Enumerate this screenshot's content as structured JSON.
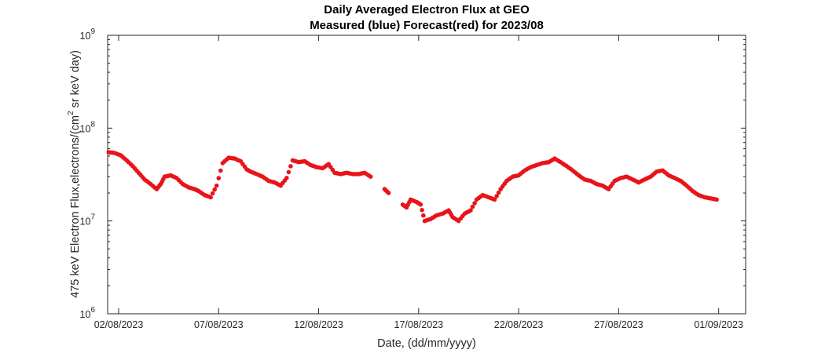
{
  "chart_data": {
    "type": "scatter",
    "title": "Daily Averaged Electron Flux at GEO",
    "subtitle": "Measured (blue) Forecast(red) for 2023/08",
    "xlabel": "Date, (dd/mm/yyyy)",
    "ylabel_main": "475 keV Electron Flux,electrons/(cm",
    "ylabel_sup": "2",
    "ylabel_tail": " sr keV day)",
    "y_scale": "log",
    "ylim": [
      1000000,
      1000000000
    ],
    "xlim_days_in_august": [
      1.45,
      33.35
    ],
    "x_ticks": [
      {
        "label": "02/08/2023",
        "value": 2
      },
      {
        "label": "07/08/2023",
        "value": 7
      },
      {
        "label": "12/08/2023",
        "value": 12
      },
      {
        "label": "17/08/2023",
        "value": 17
      },
      {
        "label": "22/08/2023",
        "value": 22
      },
      {
        "label": "27/08/2023",
        "value": 27
      },
      {
        "label": "01/09/2023",
        "value": 32
      }
    ],
    "y_ticks": [
      {
        "base": "10",
        "exp": "6",
        "value": 1000000
      },
      {
        "base": "10",
        "exp": "7",
        "value": 10000000
      },
      {
        "base": "10",
        "exp": "8",
        "value": 100000000
      },
      {
        "base": "10",
        "exp": "9",
        "value": 1000000000
      }
    ],
    "grid": false,
    "marker_color": "#e8141a",
    "series": [
      {
        "color": "#e8141a",
        "x_day": [
          1.5,
          1.8,
          2.1,
          2.4,
          2.7,
          3.0,
          3.3,
          3.6,
          3.9,
          4.1,
          4.3,
          4.6,
          4.9,
          5.2,
          5.5,
          5.8,
          6.0,
          6.3,
          6.6,
          6.9,
          7.2,
          7.5,
          7.8,
          8.1,
          8.4,
          8.6,
          8.9,
          9.2,
          9.5,
          9.8,
          10.1,
          10.4,
          10.7,
          11.0,
          11.3,
          11.6,
          11.9,
          12.2,
          12.5,
          12.8,
          13.1,
          13.4,
          13.7,
          14.0,
          14.3,
          14.6,
          15.3,
          15.5,
          16.2,
          16.4,
          16.6,
          16.9,
          17.1,
          17.3,
          17.6,
          17.9,
          18.2,
          18.5,
          18.7,
          19.0,
          19.3,
          19.6,
          19.9,
          20.2,
          20.5,
          20.8,
          21.1,
          21.4,
          21.7,
          22.0,
          22.3,
          22.6,
          22.9,
          23.2,
          23.5,
          23.8,
          24.1,
          24.4,
          24.7,
          25.0,
          25.3,
          25.6,
          25.9,
          26.2,
          26.5,
          26.8,
          27.1,
          27.4,
          27.7,
          28.0,
          28.3,
          28.6,
          28.9,
          29.2,
          29.5,
          29.8,
          30.1,
          30.4,
          30.7,
          31.0,
          31.3,
          31.6,
          31.9
        ],
        "y": [
          55000000,
          54000000,
          51000000,
          45000000,
          39000000,
          33000000,
          28000000,
          25000000,
          22000000,
          25000000,
          30000000,
          31000000,
          29000000,
          25000000,
          23000000,
          22000000,
          21000000,
          19000000,
          18000000,
          24000000,
          42000000,
          48000000,
          47000000,
          44000000,
          36000000,
          34000000,
          32000000,
          30000000,
          27000000,
          26000000,
          24000000,
          29000000,
          45000000,
          43000000,
          44000000,
          40000000,
          38000000,
          37000000,
          41000000,
          33000000,
          32000000,
          33000000,
          32000000,
          32000000,
          33000000,
          30000000,
          22000000,
          20000000,
          15000000,
          14000000,
          17000000,
          16000000,
          15000000,
          10000000,
          10500000,
          11500000,
          12000000,
          13000000,
          11000000,
          10000000,
          12000000,
          13000000,
          17000000,
          19000000,
          18000000,
          17000000,
          22000000,
          27000000,
          30000000,
          31000000,
          35000000,
          38000000,
          40000000,
          42000000,
          43000000,
          47000000,
          43000000,
          39000000,
          35000000,
          31000000,
          28000000,
          27000000,
          25000000,
          24000000,
          22000000,
          27000000,
          29000000,
          30000000,
          28000000,
          26000000,
          28000000,
          30000000,
          34000000,
          35000000,
          31000000,
          29000000,
          27000000,
          24000000,
          21000000,
          19000000,
          18000000,
          17500000,
          17000000
        ]
      }
    ]
  }
}
